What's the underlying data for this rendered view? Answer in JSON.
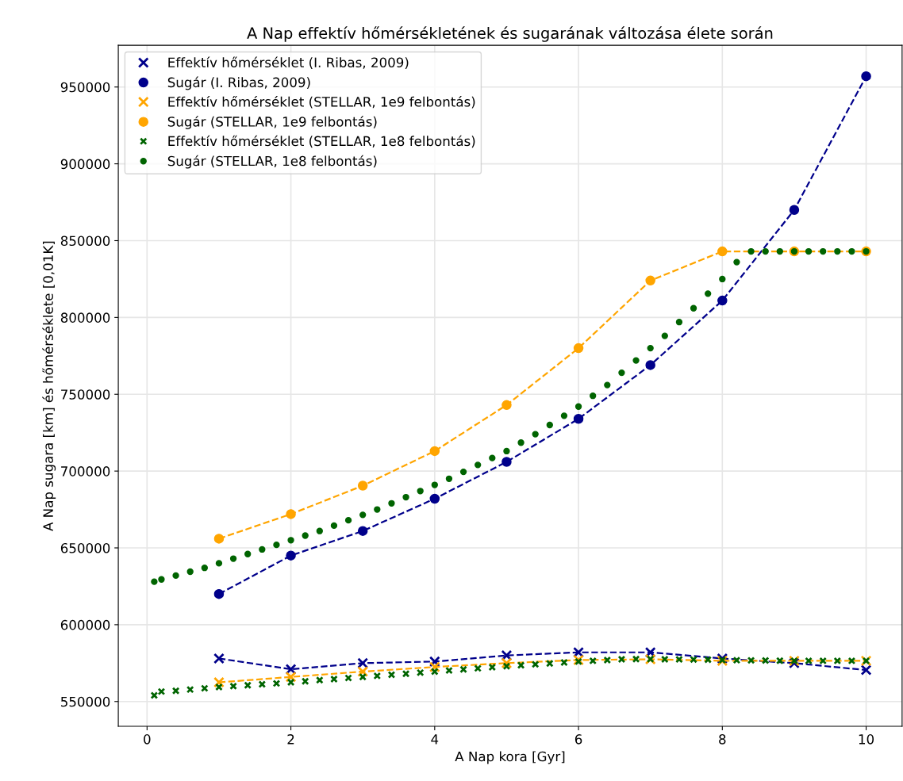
{
  "chart_data": {
    "type": "line",
    "title": "A Nap effektív hőmérsékletének és sugarának változása élete során",
    "xlabel": "A Nap kora [Gyr]",
    "ylabel": "A Nap sugara [km] és hőmérséklete [0,01K]",
    "xlim": [
      -0.4,
      10.5
    ],
    "ylim": [
      533850,
      977150
    ],
    "xticks": [
      0,
      2,
      4,
      6,
      8,
      10
    ],
    "yticks": [
      550000,
      600000,
      650000,
      700000,
      750000,
      800000,
      850000,
      900000,
      950000
    ],
    "grid": true,
    "legend": "top left",
    "series": [
      {
        "name": "Effektív hőmérséklet (I. Ribas, 2009)",
        "color": "#00008b",
        "marker": "cross",
        "line_style": "dashed",
        "x": [
          1,
          2,
          3,
          4,
          5,
          6,
          7,
          8,
          9,
          10
        ],
        "values": [
          578000,
          571000,
          575000,
          576000,
          580000,
          582000,
          582000,
          578000,
          575000,
          570500
        ]
      },
      {
        "name": "Sugár (I. Ribas, 2009)",
        "color": "#00008b",
        "marker": "circle",
        "line_style": "dashed",
        "x": [
          1,
          2,
          3,
          4,
          5,
          6,
          7,
          8,
          9,
          10
        ],
        "values": [
          620000,
          645000,
          661000,
          682000,
          706000,
          734000,
          769000,
          811000,
          870000,
          957000
        ]
      },
      {
        "name": "Effektív hőmérséklet (STELLAR, 1e9 felbontás)",
        "color": "#ffa500",
        "marker": "cross",
        "line_style": "dashed",
        "x": [
          1,
          2,
          3,
          4,
          5,
          6,
          7,
          8,
          9,
          10
        ],
        "values": [
          562500,
          566000,
          569500,
          572500,
          575000,
          577000,
          577500,
          576500,
          576500,
          576500
        ]
      },
      {
        "name": "Sugár (STELLAR, 1e9 felbontás)",
        "color": "#ffa500",
        "marker": "circle",
        "line_style": "dashed",
        "x": [
          1,
          2,
          3,
          4,
          5,
          6,
          7,
          8,
          9,
          10
        ],
        "values": [
          656000,
          672000,
          690500,
          713000,
          743000,
          780000,
          824000,
          843000,
          843000,
          843000
        ]
      },
      {
        "name": "Effektív hőmérséklet (STELLAR, 1e8 felbontás)",
        "type": "scatter",
        "color": "#006400",
        "marker": "cross",
        "x": [
          0.1,
          0.2,
          0.4,
          0.6,
          0.8,
          1.0,
          1.2,
          1.4,
          1.6,
          1.8,
          2.0,
          2.2,
          2.4,
          2.6,
          2.8,
          3.0,
          3.2,
          3.4,
          3.6,
          3.8,
          4.0,
          4.2,
          4.4,
          4.6,
          4.8,
          5.0,
          5.2,
          5.4,
          5.6,
          5.8,
          6.0,
          6.2,
          6.4,
          6.6,
          6.8,
          7.0,
          7.2,
          7.4,
          7.6,
          7.8,
          8.0,
          8.2,
          8.4,
          8.6,
          8.8,
          9.0,
          9.2,
          9.4,
          9.6,
          9.8,
          10.0
        ],
        "values": [
          554000,
          556500,
          557000,
          557800,
          558600,
          559400,
          560000,
          560600,
          561200,
          561800,
          562500,
          563200,
          563900,
          564600,
          565300,
          566000,
          566700,
          567400,
          568100,
          568800,
          569500,
          570200,
          570900,
          571600,
          572300,
          573000,
          573600,
          574200,
          574800,
          575400,
          576000,
          576500,
          577000,
          577500,
          577600,
          577600,
          577500,
          577400,
          577300,
          577200,
          577000,
          576900,
          576800,
          576700,
          576600,
          576500,
          576500,
          576500,
          576500,
          576500,
          576500
        ]
      },
      {
        "name": "Sugár (STELLAR, 1e8 felbontás)",
        "type": "scatter",
        "color": "#006400",
        "marker": "circle",
        "x": [
          0.1,
          0.2,
          0.4,
          0.6,
          0.8,
          1.0,
          1.2,
          1.4,
          1.6,
          1.8,
          2.0,
          2.2,
          2.4,
          2.6,
          2.8,
          3.0,
          3.2,
          3.4,
          3.6,
          3.8,
          4.0,
          4.2,
          4.4,
          4.6,
          4.8,
          5.0,
          5.2,
          5.4,
          5.6,
          5.8,
          6.0,
          6.2,
          6.4,
          6.6,
          6.8,
          7.0,
          7.2,
          7.4,
          7.6,
          7.8,
          8.0,
          8.2,
          8.4,
          8.6,
          8.8,
          9.0,
          9.2,
          9.4,
          9.6,
          9.8,
          10.0
        ],
        "values": [
          628000,
          629500,
          632000,
          634500,
          637000,
          640000,
          643000,
          646000,
          649000,
          652000,
          655000,
          658000,
          661000,
          664500,
          668000,
          671500,
          675000,
          679000,
          683000,
          687000,
          691000,
          695000,
          699500,
          704000,
          708500,
          713000,
          718500,
          724000,
          730000,
          736000,
          742000,
          749000,
          756000,
          764000,
          772000,
          780000,
          788000,
          797000,
          806000,
          815500,
          825000,
          836000,
          843000,
          843000,
          843000,
          843000,
          843000,
          843000,
          843000,
          843000,
          843000
        ]
      }
    ]
  }
}
